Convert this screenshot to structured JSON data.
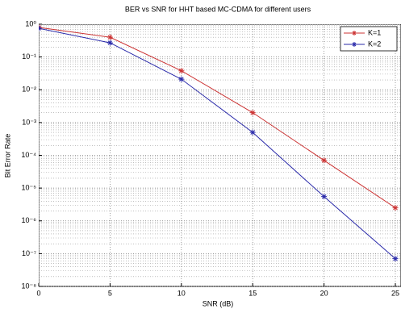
{
  "chart_data": {
    "type": "line",
    "title": "BER vs SNR for HHT based MC-CDMA for different users",
    "x_label": "SNR (dB)",
    "y_label": "Bit Error Rate",
    "x": [
      0,
      5,
      10,
      15,
      20,
      25
    ],
    "series": [
      {
        "name": "K=1",
        "color": "#cc3333",
        "values": [
          0.8,
          0.4,
          0.038,
          0.002,
          7e-05,
          2.5e-06
        ]
      },
      {
        "name": "K=2",
        "color": "#2a2aaa",
        "values": [
          0.75,
          0.27,
          0.021,
          0.0005,
          5.5e-06,
          7e-08
        ]
      }
    ],
    "xlim": [
      0,
      25
    ],
    "xticks": [
      0,
      5,
      10,
      15,
      20,
      25
    ],
    "ylim": [
      1e-08,
      1
    ],
    "log_y": true,
    "grid": true,
    "legend": "upper right",
    "yticks": [
      {
        "value": 1e-08,
        "label": "10⁻⁸"
      },
      {
        "value": 1e-07,
        "label": "10⁻⁷"
      },
      {
        "value": 1e-06,
        "label": "10⁻⁶"
      },
      {
        "value": 1e-05,
        "label": "10⁻⁵"
      },
      {
        "value": 0.0001,
        "label": "10⁻⁴"
      },
      {
        "value": 0.001,
        "label": "10⁻³"
      },
      {
        "value": 0.01,
        "label": "10⁻²"
      },
      {
        "value": 0.1,
        "label": "10⁻¹"
      },
      {
        "value": 1,
        "label": "10⁰"
      }
    ]
  }
}
